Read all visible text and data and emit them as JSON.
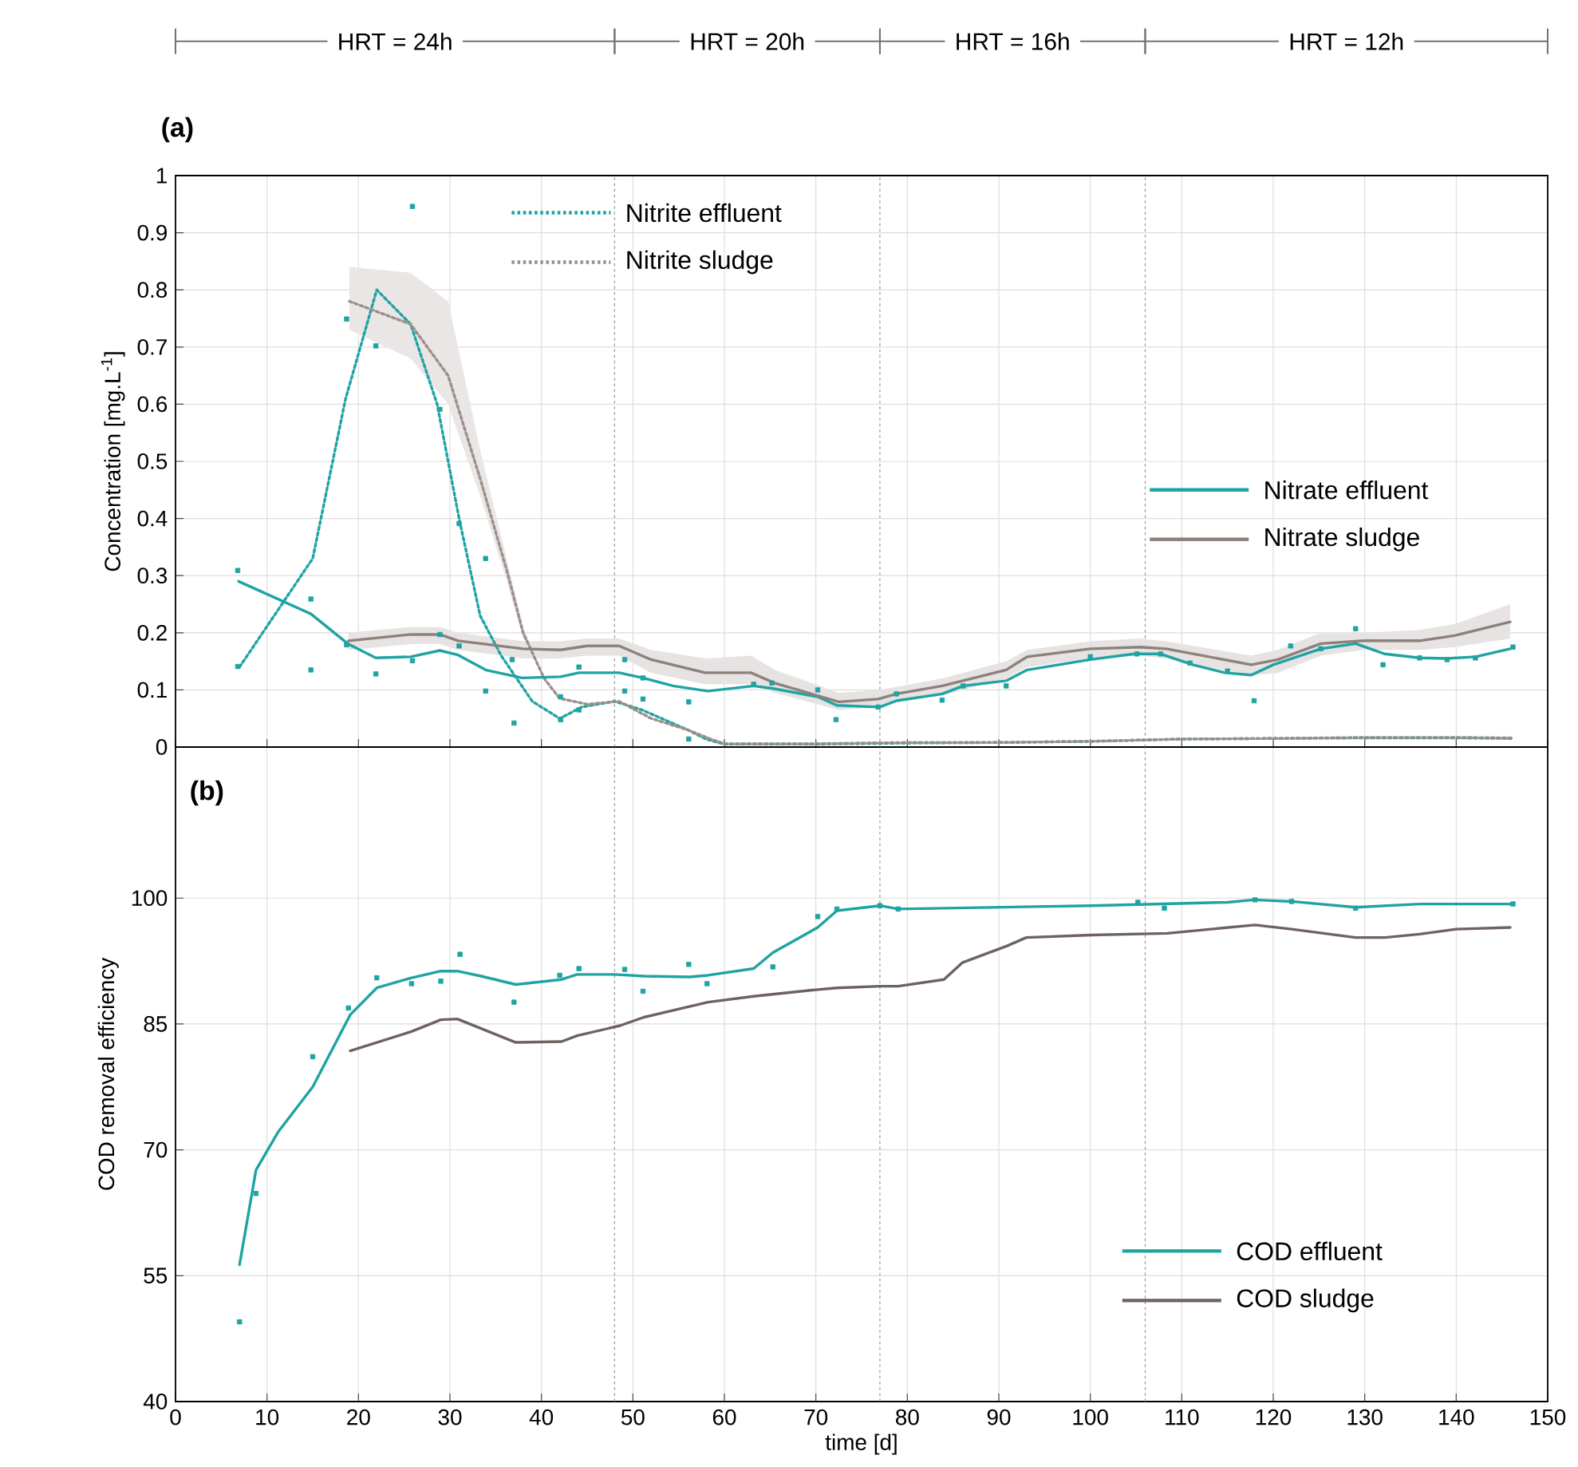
{
  "chart_data": [
    {
      "type": "line",
      "title": "(a)",
      "ylabel": "Concentration [mg.L$^{-1}$]",
      "annotations": [
        "HRT = 24h",
        "HRT = 20h",
        "HRT = 16h",
        "HRT = 12h"
      ],
      "xlim": [
        0,
        150
      ],
      "xticks": [
        0,
        10,
        20,
        30,
        40,
        50,
        60,
        70,
        80,
        90,
        100,
        110,
        120,
        130,
        140,
        150
      ],
      "ylim": [
        0,
        1
      ],
      "yticks": [
        0,
        0.1,
        0.2,
        0.3,
        0.4,
        0.5,
        0.6,
        0.7,
        0.8,
        0.9,
        1
      ],
      "tick_labels": "y",
      "grid": true,
      "legend": "right",
      "ref_lines": [
        {
          "axis": "x",
          "value": 48,
          "color": "#999999",
          "line_style": "dotted"
        },
        {
          "axis": "x",
          "value": 77,
          "color": "#999999",
          "line_style": "dotted"
        },
        {
          "axis": "x",
          "value": 106,
          "color": "#999999",
          "line_style": "dotted"
        }
      ],
      "series": [
        {
          "name": "Nitrite effluent",
          "line_style": "dotted",
          "color": "#1fa3a3",
          "x": [
            7,
            15,
            18.6,
            22,
            25.7,
            28.6,
            31,
            33.3,
            35.6,
            39,
            42,
            44.4,
            48,
            51,
            56,
            58,
            60,
            70,
            80,
            90,
            100,
            110,
            120,
            130,
            140,
            146
          ],
          "values": [
            0.14,
            0.33,
            0.61,
            0.8,
            0.74,
            0.6,
            0.4,
            0.23,
            0.16,
            0.08,
            0.05,
            0.07,
            0.08,
            0.065,
            0.03,
            0.014,
            0.005,
            0.005,
            0.007,
            0.008,
            0.01,
            0.014,
            0.015,
            0.016,
            0.016,
            0.015
          ]
        },
        {
          "name": "Nitrite sludge",
          "line_style": "dotted",
          "color": "#9a8f8a",
          "x": [
            19,
            25.7,
            29.8,
            33.3,
            36.2,
            38,
            40.3,
            42,
            45,
            48.5,
            52,
            56,
            58.5,
            60,
            70,
            80,
            90,
            100,
            110,
            120,
            130,
            140,
            146
          ],
          "values": [
            0.78,
            0.74,
            0.65,
            0.47,
            0.31,
            0.2,
            0.12,
            0.085,
            0.075,
            0.08,
            0.05,
            0.03,
            0.014,
            0.006,
            0.006,
            0.008,
            0.008,
            0.01,
            0.014,
            0.015,
            0.017,
            0.017,
            0.016
          ],
          "lower": [
            0.73,
            0.68,
            0.6,
            0.44,
            0.29,
            0.19,
            0.12,
            0.085,
            0.075,
            0.08,
            0.05,
            0.03,
            0.014,
            0.006,
            0.006,
            0.008,
            0.008,
            0.01,
            0.014,
            0.015,
            0.017,
            0.017,
            0.016
          ],
          "upper": [
            0.84,
            0.83,
            0.78,
            0.52,
            0.33,
            0.21,
            0.12,
            0.085,
            0.075,
            0.08,
            0.05,
            0.03,
            0.014,
            0.006,
            0.006,
            0.008,
            0.008,
            0.01,
            0.014,
            0.015,
            0.017,
            0.017,
            0.016
          ]
        },
        {
          "name": "Nitrate effluent",
          "line_style": "solid",
          "color": "#1fa3a3",
          "x": [
            6.9,
            14.8,
            18.9,
            21.9,
            25.7,
            28.9,
            30.9,
            33.9,
            37.9,
            42.1,
            44.1,
            48.5,
            51.1,
            54.4,
            58.2,
            63.2,
            65.5,
            70.2,
            72.3,
            77,
            78.8,
            83.8,
            86.1,
            90.8,
            93.1,
            100,
            104.8,
            107.7,
            111.2,
            114.7,
            117.6,
            120,
            125.2,
            129,
            132.2,
            136,
            139,
            142.1,
            145.9
          ],
          "values": [
            0.29,
            0.233,
            0.18,
            0.156,
            0.158,
            0.169,
            0.161,
            0.135,
            0.121,
            0.123,
            0.13,
            0.13,
            0.121,
            0.107,
            0.098,
            0.107,
            0.102,
            0.088,
            0.073,
            0.07,
            0.081,
            0.093,
            0.107,
            0.116,
            0.135,
            0.153,
            0.163,
            0.163,
            0.144,
            0.13,
            0.126,
            0.144,
            0.172,
            0.181,
            0.163,
            0.156,
            0.155,
            0.158,
            0.172
          ]
        },
        {
          "name": "Nitrate sludge",
          "line_style": "solid",
          "color": "#8c817c",
          "x": [
            18.9,
            25.7,
            28.9,
            30.9,
            38,
            42.1,
            45,
            48.5,
            52,
            57.9,
            62.9,
            65.5,
            72.5,
            76.8,
            78.8,
            83.8,
            90.8,
            93.1,
            100,
            105.4,
            108.3,
            117.6,
            120.5,
            125.2,
            129.9,
            136,
            139.8,
            145.9
          ],
          "values": [
            0.186,
            0.197,
            0.197,
            0.186,
            0.172,
            0.17,
            0.177,
            0.177,
            0.153,
            0.13,
            0.13,
            0.112,
            0.079,
            0.084,
            0.093,
            0.107,
            0.135,
            0.158,
            0.172,
            0.175,
            0.172,
            0.144,
            0.153,
            0.181,
            0.186,
            0.186,
            0.195,
            0.219
          ],
          "lower": [
            0.17,
            0.18,
            0.18,
            0.17,
            0.155,
            0.155,
            0.16,
            0.16,
            0.13,
            0.11,
            0.11,
            0.095,
            0.065,
            0.07,
            0.08,
            0.09,
            0.12,
            0.14,
            0.155,
            0.16,
            0.155,
            0.125,
            0.13,
            0.16,
            0.17,
            0.17,
            0.175,
            0.19
          ],
          "upper": [
            0.2,
            0.21,
            0.21,
            0.2,
            0.185,
            0.185,
            0.19,
            0.19,
            0.17,
            0.155,
            0.16,
            0.135,
            0.095,
            0.1,
            0.105,
            0.12,
            0.15,
            0.17,
            0.185,
            0.19,
            0.185,
            0.16,
            0.17,
            0.2,
            0.2,
            0.205,
            0.215,
            0.25
          ]
        },
        {
          "type": "scatter",
          "marker": "square",
          "color": "#1fa3a3",
          "x": [
            6.8,
            6.8,
            14.8,
            14.8,
            18.7,
            18.7,
            21.9,
            21.9,
            25.9,
            25.9,
            28.9,
            28.9,
            31,
            31,
            33.9,
            33.9,
            36.8,
            37,
            42.1,
            42.1,
            44.1,
            44.1,
            49.1,
            49.1,
            51.1,
            51.1,
            56.1,
            56.1,
            63.2,
            65.2,
            70.2,
            72.2,
            76.8,
            78.8,
            83.8,
            86.1,
            90.8,
            100,
            105.1,
            107.7,
            110.9,
            115,
            117.9,
            121.9,
            125.2,
            129,
            132,
            136,
            139,
            142.1,
            146.2
          ],
          "values": [
            0.309,
            0.141,
            0.259,
            0.135,
            0.749,
            0.179,
            0.702,
            0.128,
            0.946,
            0.151,
            0.591,
            0.197,
            0.391,
            0.177,
            0.33,
            0.098,
            0.153,
            0.042,
            0.088,
            0.048,
            0.14,
            0.065,
            0.153,
            0.098,
            0.121,
            0.084,
            0.079,
            0.014,
            0.11,
            0.112,
            0.1,
            0.048,
            0.07,
            0.093,
            0.082,
            0.107,
            0.107,
            0.158,
            0.163,
            0.163,
            0.147,
            0.133,
            0.081,
            0.177,
            0.172,
            0.207,
            0.144,
            0.156,
            0.153,
            0.156,
            0.175
          ]
        }
      ]
    },
    {
      "type": "line",
      "title": "(b)",
      "xlabel": "time [d]",
      "ylabel": "COD removal efficiency",
      "xlim": [
        0,
        150
      ],
      "xticks": [
        0,
        10,
        20,
        30,
        40,
        50,
        60,
        70,
        80,
        90,
        100,
        110,
        120,
        130,
        140,
        150
      ],
      "ylim": [
        40,
        118
      ],
      "yticks": [
        40,
        55,
        70,
        85,
        100
      ],
      "grid": true,
      "legend": "bottom right",
      "ref_lines": [
        {
          "axis": "x",
          "value": 48,
          "color": "#999999",
          "line_style": "dotted"
        },
        {
          "axis": "x",
          "value": 77,
          "color": "#999999",
          "line_style": "dotted"
        },
        {
          "axis": "x",
          "value": 106,
          "color": "#999999",
          "line_style": "dotted"
        }
      ],
      "series": [
        {
          "name": "COD effluent",
          "line_style": "solid",
          "color": "#1fa3a3",
          "x": [
            7,
            8.8,
            11.2,
            15,
            19.1,
            22,
            25.8,
            29,
            30.8,
            33.4,
            37.2,
            42.2,
            43.9,
            48,
            51.2,
            56.2,
            58.2,
            63.2,
            65.3,
            70.2,
            72.3,
            77,
            79,
            100.1,
            115,
            117.9,
            122,
            129,
            136,
            146.2
          ],
          "values": [
            56.3,
            67.6,
            72.1,
            77.5,
            86.1,
            89.3,
            90.5,
            91.3,
            91.3,
            90.7,
            89.7,
            90.3,
            90.9,
            90.9,
            90.7,
            90.6,
            90.8,
            91.6,
            93.5,
            96.5,
            98.5,
            99.1,
            98.7,
            99.1,
            99.5,
            99.8,
            99.6,
            98.9,
            99.3,
            99.3
          ]
        },
        {
          "name": "COD sludge",
          "line_style": "solid",
          "color": "#6e625e",
          "x": [
            19.1,
            25.8,
            29,
            30.8,
            37.2,
            42.2,
            43.9,
            48.6,
            51.2,
            58.2,
            63.2,
            70.2,
            72.3,
            77,
            79,
            84,
            86,
            90.9,
            93,
            100.1,
            108.4,
            118,
            122,
            129,
            132.2,
            136,
            140,
            145.9
          ],
          "values": [
            81.8,
            84.1,
            85.5,
            85.6,
            82.8,
            82.9,
            83.6,
            84.8,
            85.8,
            87.6,
            88.3,
            89.1,
            89.3,
            89.5,
            89.5,
            90.3,
            92.3,
            94.3,
            95.3,
            95.6,
            95.8,
            96.8,
            96.3,
            95.3,
            95.3,
            95.7,
            96.3,
            96.5
          ]
        },
        {
          "type": "scatter",
          "marker": "square",
          "color": "#1fa3a3",
          "x": [
            7,
            8.8,
            15,
            18.9,
            22,
            25.8,
            29,
            31.1,
            37,
            42,
            44.1,
            49.1,
            51.1,
            56.1,
            58.1,
            65.3,
            70.2,
            72.3,
            77,
            79,
            105.2,
            108.1,
            118,
            122,
            129,
            146.2
          ],
          "values": [
            49.5,
            64.8,
            81.1,
            86.9,
            90.5,
            89.8,
            90.1,
            93.3,
            87.6,
            90.8,
            91.6,
            91.5,
            88.9,
            92.1,
            89.8,
            91.8,
            97.8,
            98.7,
            99.1,
            98.7,
            99.5,
            98.8,
            99.8,
            99.6,
            98.8,
            99.3
          ]
        }
      ]
    }
  ]
}
